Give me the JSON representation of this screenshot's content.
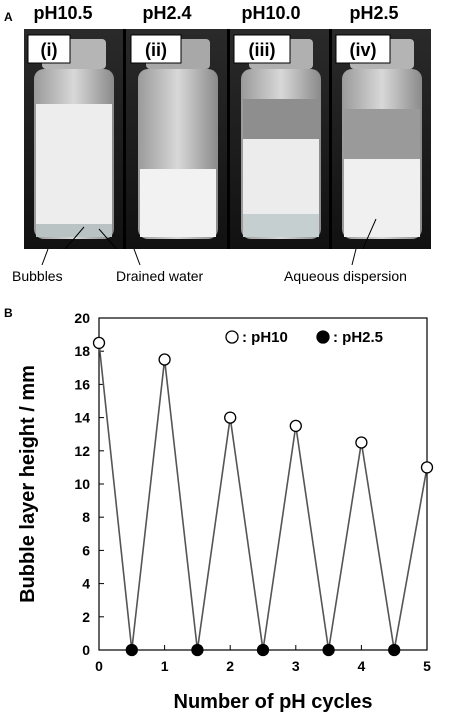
{
  "panel_a": {
    "letter": "A",
    "vials": [
      {
        "roman": "(i)",
        "ph": "pH10.5"
      },
      {
        "roman": "(ii)",
        "ph": "pH2.4"
      },
      {
        "roman": "(iii)",
        "ph": "pH10.0"
      },
      {
        "roman": "(iv)",
        "ph": "pH2.5"
      }
    ],
    "annotations": {
      "bubbles": "Bubbles",
      "drained": "Drained water",
      "aqueous": "Aqueous dispersion"
    }
  },
  "panel_b": {
    "letter": "B"
  },
  "chart_data": {
    "type": "line",
    "xlabel": "Number of pH cycles",
    "ylabel": "Bubble layer height / mm",
    "xlim": [
      0,
      5
    ],
    "ylim": [
      0,
      20
    ],
    "xticks": [
      "0",
      "1",
      "2",
      "3",
      "4",
      "5"
    ],
    "yticks": [
      "0",
      "2",
      "4",
      "6",
      "8",
      "10",
      "12",
      "14",
      "16",
      "18",
      "20"
    ],
    "legend": [
      {
        "marker": "open-circle",
        "label": ": pH10"
      },
      {
        "marker": "filled-circle",
        "label": ": pH2.5"
      }
    ],
    "legend_position": "top-right",
    "series": [
      {
        "name": ": pH10",
        "marker": "open",
        "x": [
          0,
          1,
          2,
          3,
          4,
          5
        ],
        "y": [
          18.5,
          17.5,
          14.0,
          13.5,
          12.5,
          11.0
        ]
      },
      {
        "name": ": pH2.5",
        "marker": "filled",
        "x": [
          0.5,
          1.5,
          2.5,
          3.5,
          4.5
        ],
        "y": [
          0,
          0,
          0,
          0,
          0
        ]
      }
    ]
  }
}
